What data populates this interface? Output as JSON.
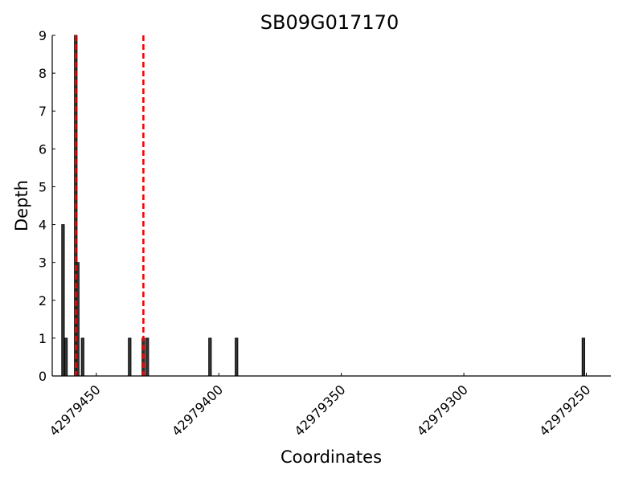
{
  "chart_data": {
    "type": "bar",
    "title": "SB09G017170",
    "xlabel": "Coordinates",
    "ylabel": "Depth",
    "x_reversed": true,
    "xlim": [
      42979468,
      42979240
    ],
    "ylim": [
      0,
      9
    ],
    "x_ticks": [
      42979450,
      42979400,
      42979350,
      42979300,
      42979250
    ],
    "x_tick_labels": [
      "42979450",
      "42979400",
      "42979350",
      "42979300",
      "42979250"
    ],
    "y_ticks": [
      0,
      1,
      2,
      3,
      4,
      5,
      6,
      7,
      8,
      9
    ],
    "y_tick_labels": [
      "0",
      "1",
      "2",
      "3",
      "4",
      "5",
      "6",
      "7",
      "8",
      "9"
    ],
    "bar_color": "#333333",
    "bar_edge_color": "#000000",
    "bars": [
      {
        "x": 42979463.6,
        "y": 4
      },
      {
        "x": 42979462.4,
        "y": 1
      },
      {
        "x": 42979458.4,
        "y": 9
      },
      {
        "x": 42979457.6,
        "y": 3
      },
      {
        "x": 42979455.6,
        "y": 1
      },
      {
        "x": 42979436.4,
        "y": 1
      },
      {
        "x": 42979430.8,
        "y": 1
      },
      {
        "x": 42979429.2,
        "y": 1
      },
      {
        "x": 42979403.6,
        "y": 1
      },
      {
        "x": 42979392.8,
        "y": 1
      },
      {
        "x": 42979251.2,
        "y": 1
      }
    ],
    "reference_lines": [
      {
        "x": 42979458.4,
        "color": "#ff0000",
        "style": "dashed"
      },
      {
        "x": 42979430.8,
        "color": "#ff0000",
        "style": "dashed"
      }
    ],
    "grid": false,
    "legend": "none"
  }
}
